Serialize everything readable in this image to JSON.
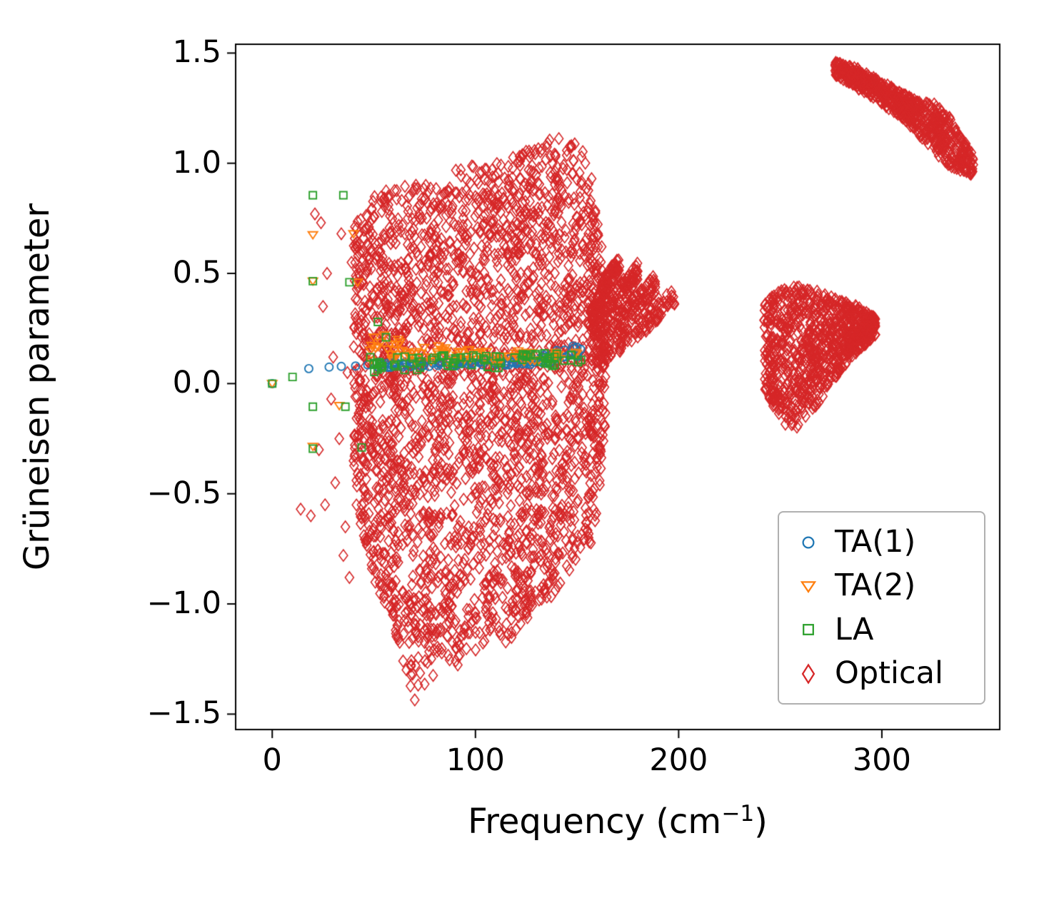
{
  "window": {
    "background": "#ffffff"
  },
  "chart_data": {
    "type": "scatter",
    "title": "",
    "xlabel": "Frequency (cm⁻¹)",
    "xlabel_parts": {
      "pre": "Frequency (cm",
      "sup": "−1",
      "post": ")"
    },
    "ylabel": "Grüneisen parameter",
    "xlim": [
      -18,
      358
    ],
    "ylim": [
      -1.57,
      1.54
    ],
    "x_ticks": [
      0,
      100,
      200,
      300
    ],
    "x_tick_labels": [
      "0",
      "100",
      "200",
      "300"
    ],
    "y_ticks": [
      -1.5,
      -1.0,
      -0.5,
      0.0,
      0.5,
      1.0,
      1.5
    ],
    "y_tick_labels": [
      "−1.5",
      "−1.0",
      "−0.5",
      "0.0",
      "0.5",
      "1.0",
      "1.5"
    ],
    "grid": false,
    "style": {
      "spine_color": "#000000",
      "tick_color": "#000000",
      "legend_edge_color": "#b0b0b0",
      "background": "#ffffff"
    },
    "legend": {
      "position": "lower right",
      "order": [
        "TA(1)",
        "TA(2)",
        "LA",
        "Optical"
      ]
    },
    "series": [
      {
        "key": "TA1",
        "name": "TA(1)",
        "marker": "circle",
        "color": "#1f77b4",
        "size": 5.5,
        "stroke_width": 1.9,
        "z": 1,
        "points": [
          [
            0,
            0.0
          ],
          [
            18,
            0.068
          ],
          [
            28,
            0.075
          ],
          [
            34,
            0.078
          ],
          [
            41,
            0.08
          ],
          [
            47,
            0.085
          ],
          [
            118,
            0.095
          ],
          [
            121,
            0.1
          ],
          [
            124,
            0.1
          ],
          [
            126,
            0.105
          ],
          [
            128,
            0.1
          ],
          [
            130,
            0.105
          ],
          [
            132,
            0.11
          ],
          [
            125,
            0.095
          ],
          [
            129,
            0.1
          ],
          [
            133,
            0.105
          ],
          [
            140,
            0.15
          ],
          [
            148,
            0.17
          ],
          [
            150,
            0.165
          ],
          [
            143,
            0.12
          ],
          [
            146,
            0.13
          ]
        ],
        "clusters": [
          {
            "n": 110,
            "seed": 11,
            "env": [
              [
                52,
                0.07,
                0.1
              ],
              [
                90,
                0.08,
                0.11
              ],
              [
                120,
                0.085,
                0.115
              ],
              [
                140,
                0.09,
                0.14
              ],
              [
                152,
                0.12,
                0.18
              ]
            ]
          }
        ]
      },
      {
        "key": "TA2",
        "name": "TA(2)",
        "marker": "triangle-down",
        "color": "#ff7f0e",
        "size": 6.5,
        "stroke_width": 1.9,
        "z": 1,
        "points": [
          [
            0,
            0.0
          ],
          [
            20,
            0.675
          ],
          [
            40,
            0.68
          ],
          [
            20,
            0.465
          ],
          [
            42,
            0.46
          ],
          [
            33,
            -0.1
          ],
          [
            20,
            -0.285
          ],
          [
            50,
            0.21
          ],
          [
            55,
            0.22
          ],
          [
            58,
            0.18
          ],
          [
            62,
            0.2
          ]
        ],
        "clusters": [
          {
            "n": 85,
            "seed": 22,
            "env": [
              [
                48,
                0.1,
                0.22
              ],
              [
                70,
                0.1,
                0.18
              ],
              [
                100,
                0.09,
                0.16
              ],
              [
                130,
                0.1,
                0.16
              ],
              [
                150,
                0.11,
                0.17
              ]
            ]
          }
        ]
      },
      {
        "key": "LA",
        "name": "LA",
        "marker": "square",
        "color": "#2ca02c",
        "size": 5,
        "stroke_width": 1.9,
        "z": 1,
        "points": [
          [
            0,
            0.0
          ],
          [
            20,
            0.855
          ],
          [
            35,
            0.855
          ],
          [
            20,
            0.465
          ],
          [
            38,
            0.46
          ],
          [
            20,
            -0.105
          ],
          [
            36,
            -0.105
          ],
          [
            20,
            -0.295
          ],
          [
            44,
            -0.29
          ],
          [
            52,
            0.28
          ],
          [
            56,
            0.21
          ],
          [
            10,
            0.03
          ]
        ],
        "clusters": [
          {
            "n": 80,
            "seed": 33,
            "env": [
              [
                45,
                0.05,
                0.12
              ],
              [
                80,
                0.06,
                0.13
              ],
              [
                110,
                0.07,
                0.13
              ],
              [
                140,
                0.08,
                0.14
              ],
              [
                152,
                0.1,
                0.15
              ]
            ]
          }
        ]
      },
      {
        "key": "Optical",
        "name": "Optical",
        "marker": "diamond",
        "color": "#d62728",
        "size": 6,
        "stroke_width": 1.6,
        "z": 0,
        "points": [
          [
            14,
            -0.57
          ],
          [
            19,
            -0.6
          ],
          [
            21,
            0.77
          ],
          [
            24,
            0.73
          ],
          [
            27,
            0.5
          ],
          [
            25,
            0.35
          ],
          [
            30,
            0.12
          ],
          [
            29,
            -0.07
          ],
          [
            33,
            -0.25
          ],
          [
            31,
            -0.45
          ],
          [
            36,
            -0.65
          ],
          [
            35,
            -0.78
          ],
          [
            39,
            0.55
          ],
          [
            41,
            0.3
          ],
          [
            43,
            -0.1
          ],
          [
            40,
            -0.35
          ],
          [
            44,
            -0.55
          ],
          [
            46,
            -0.72
          ],
          [
            37,
            0.05
          ],
          [
            23,
            -0.3
          ],
          [
            26,
            -0.55
          ],
          [
            34,
            0.68
          ],
          [
            42,
            0.62
          ],
          [
            45,
            0.45
          ],
          [
            38,
            -0.88
          ],
          [
            47,
            0.1
          ],
          [
            48,
            -0.2
          ],
          [
            46,
            0.33
          ]
        ],
        "clusters": [
          {
            "n": 2800,
            "seed": 1,
            "env": [
              [
                40,
                -0.55,
                0.72
              ],
              [
                46,
                -0.75,
                0.8
              ],
              [
                52,
                -0.95,
                0.87
              ],
              [
                58,
                -1.05,
                0.88
              ],
              [
                64,
                -1.3,
                0.9
              ],
              [
                70,
                -1.47,
                0.9
              ],
              [
                76,
                -1.38,
                0.92
              ],
              [
                84,
                -1.25,
                0.95
              ],
              [
                92,
                -1.3,
                0.98
              ],
              [
                100,
                -1.22,
                1.0
              ],
              [
                108,
                -1.15,
                1.02
              ],
              [
                116,
                -1.18,
                1.05
              ],
              [
                124,
                -1.08,
                1.06
              ],
              [
                132,
                -1.0,
                1.08
              ],
              [
                140,
                -0.95,
                1.13
              ],
              [
                146,
                -0.85,
                1.12
              ],
              [
                152,
                -0.78,
                1.08
              ],
              [
                157,
                -0.74,
                0.95
              ],
              [
                161,
                -0.5,
                0.7
              ],
              [
                164,
                -0.2,
                0.5
              ]
            ]
          },
          {
            "n": 110,
            "seed": 2,
            "env": [
              [
                157,
                0.2,
                0.33
              ],
              [
                164,
                0.38,
                0.5
              ],
              [
                171,
                0.52,
                0.58
              ]
            ]
          },
          {
            "n": 110,
            "seed": 3,
            "env": [
              [
                158,
                0.16,
                0.27
              ],
              [
                169,
                0.32,
                0.44
              ],
              [
                180,
                0.47,
                0.55
              ]
            ]
          },
          {
            "n": 110,
            "seed": 4,
            "env": [
              [
                160,
                0.12,
                0.22
              ],
              [
                176,
                0.28,
                0.38
              ],
              [
                189,
                0.42,
                0.5
              ]
            ]
          },
          {
            "n": 110,
            "seed": 5,
            "env": [
              [
                162,
                0.08,
                0.18
              ],
              [
                182,
                0.22,
                0.32
              ],
              [
                198,
                0.36,
                0.46
              ]
            ]
          },
          {
            "n": 900,
            "seed": 6,
            "env": [
              [
                242,
                -0.02,
                0.36
              ],
              [
                250,
                -0.18,
                0.43
              ],
              [
                258,
                -0.2,
                0.45
              ],
              [
                266,
                -0.13,
                0.43
              ],
              [
                275,
                0.0,
                0.4
              ],
              [
                285,
                0.12,
                0.37
              ],
              [
                297,
                0.22,
                0.3
              ]
            ]
          },
          {
            "n": 700,
            "seed": 7,
            "env": [
              [
                277,
                1.4,
                1.46
              ],
              [
                288,
                1.34,
                1.43
              ],
              [
                298,
                1.28,
                1.38
              ],
              [
                308,
                1.22,
                1.33
              ],
              [
                318,
                1.13,
                1.28
              ],
              [
                326,
                1.05,
                1.27
              ],
              [
                333,
                0.99,
                1.22
              ],
              [
                339,
                0.96,
                1.12
              ],
              [
                345,
                0.94,
                1.04
              ]
            ]
          }
        ]
      }
    ]
  }
}
